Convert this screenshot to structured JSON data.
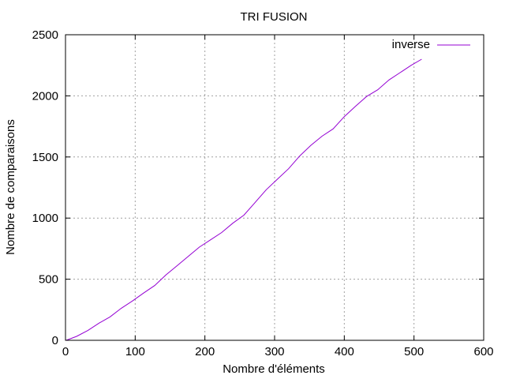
{
  "chart_data": {
    "type": "line",
    "title": "TRI FUSION",
    "xlabel": "Nombre d'éléments",
    "ylabel": "Nombre de comparaisons",
    "xlim": [
      0,
      600
    ],
    "ylim": [
      0,
      2500
    ],
    "xticks": [
      0,
      100,
      200,
      300,
      400,
      500,
      600
    ],
    "yticks": [
      0,
      500,
      1000,
      1500,
      2000,
      2500
    ],
    "grid": true,
    "legend_position": "top-right",
    "series": [
      {
        "name": "inverse",
        "color": "#9400d3",
        "x": [
          1,
          16,
          32,
          48,
          64,
          80,
          96,
          112,
          128,
          144,
          160,
          176,
          192,
          208,
          224,
          240,
          256,
          272,
          288,
          304,
          320,
          336,
          352,
          368,
          384,
          400,
          416,
          432,
          448,
          464,
          480,
          496,
          511
        ],
        "y": [
          0,
          32,
          80,
          140,
          192,
          262,
          322,
          386,
          448,
          534,
          610,
          686,
          762,
          822,
          882,
          958,
          1024,
          1128,
          1232,
          1318,
          1404,
          1508,
          1595,
          1670,
          1730,
          1830,
          1915,
          1995,
          2050,
          2130,
          2190,
          2250,
          2300
        ]
      }
    ]
  }
}
